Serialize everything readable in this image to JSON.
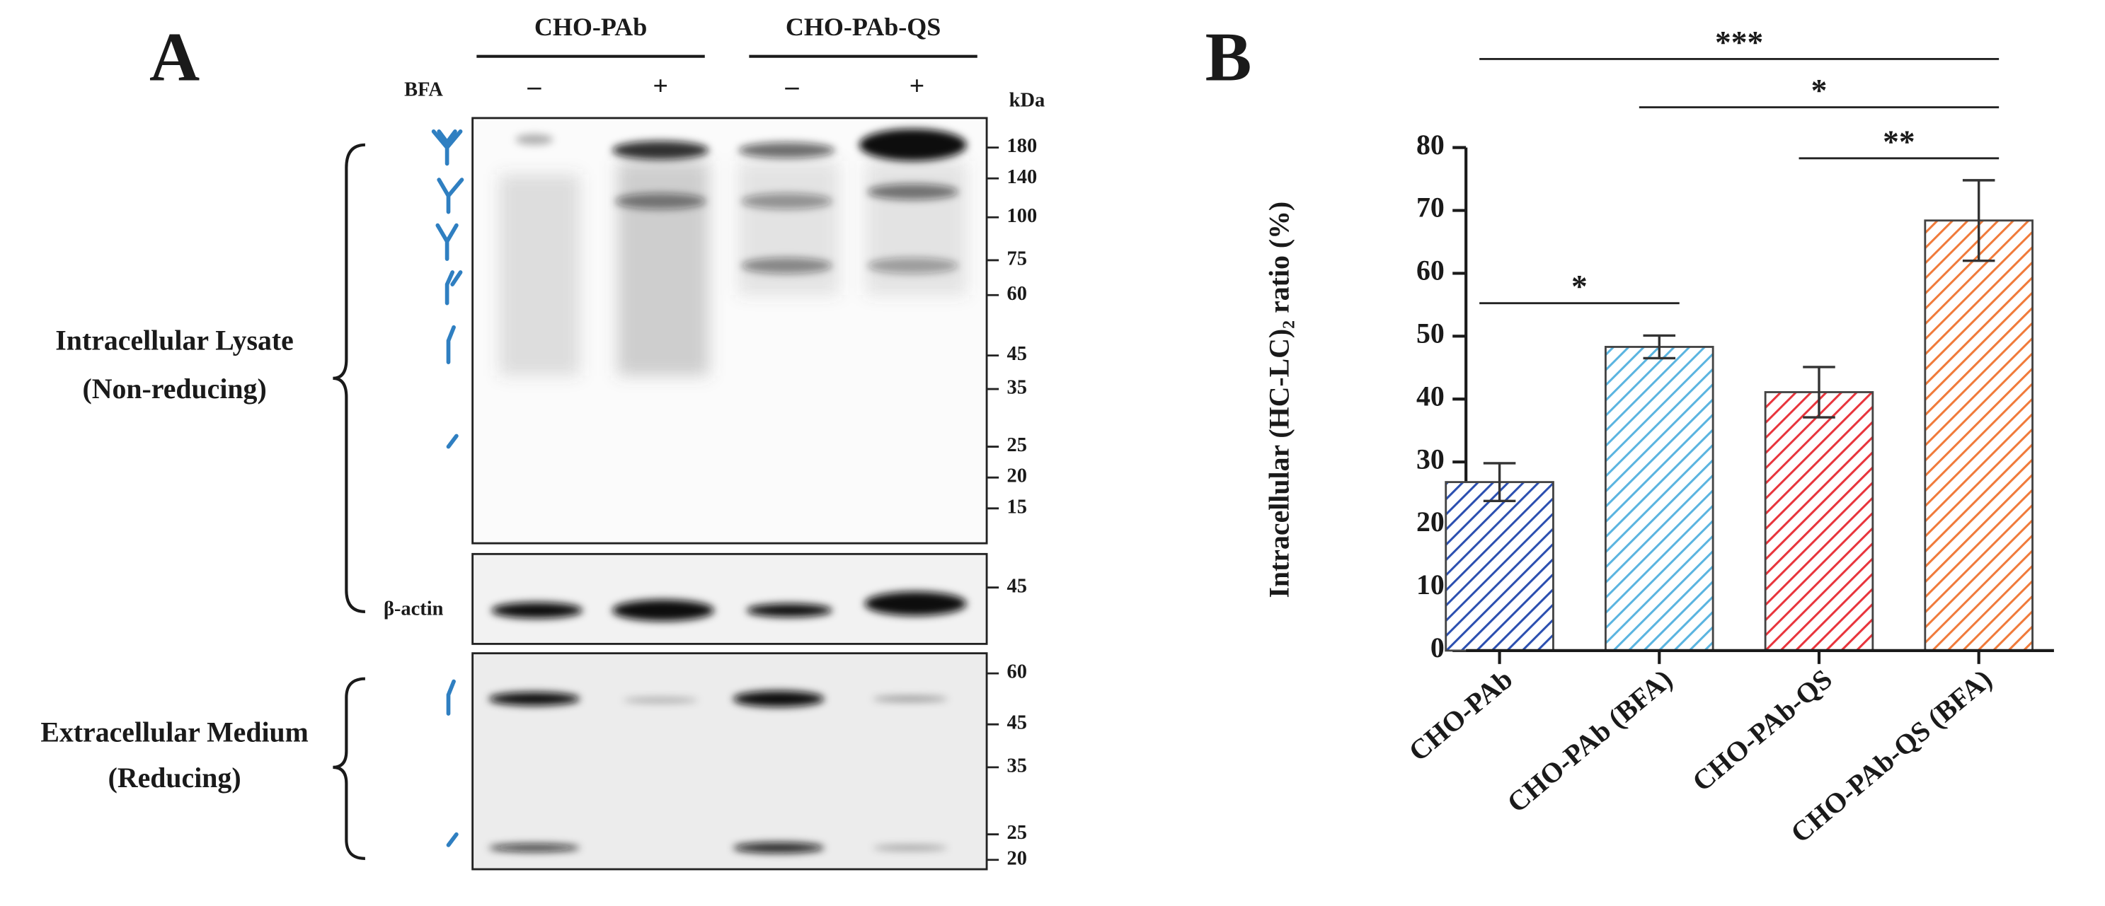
{
  "panel_a": {
    "label": "A",
    "groups": [
      "CHO-PAb",
      "CHO-PAb-QS"
    ],
    "treatment_label": "BFA",
    "treatments": [
      "–",
      "+",
      "–",
      "+"
    ],
    "unit": "kDa",
    "lysate_markers": [
      180,
      140,
      100,
      75,
      60,
      45,
      35,
      25,
      20,
      15
    ],
    "actin_label": "β-actin",
    "actin_markers": [
      45
    ],
    "medium_markers": [
      60,
      45,
      35,
      25,
      20
    ],
    "lysate_label": [
      "Intracellular Lysate",
      "(Non-reducing)"
    ],
    "medium_label": [
      "Extracellular Medium",
      "(Reducing)"
    ]
  },
  "chart_data": {
    "type": "bar",
    "panel_label": "B",
    "ylabel": "Intracellular (HC-LC)₂ ratio (%)",
    "categories": [
      "CHO-PAb",
      "CHO-PAb (BFA)",
      "CHO-PAb-QS",
      "CHO-PAb-QS (BFA)"
    ],
    "values": [
      26.8,
      48.3,
      41.1,
      68.4
    ],
    "errors": [
      3.0,
      1.8,
      4.0,
      6.4
    ],
    "colors": [
      "#2b4fb0",
      "#5ab4e0",
      "#e8343c",
      "#f07a3a"
    ],
    "hatch": true,
    "ylim": [
      0,
      80
    ],
    "yticks": [
      0,
      10,
      20,
      30,
      40,
      50,
      60,
      70,
      80
    ],
    "significance": [
      {
        "from": 0,
        "to": 1,
        "label": "*"
      },
      {
        "from": 2,
        "to": 3,
        "label": "**"
      },
      {
        "from": 1,
        "to": 3,
        "label": "*"
      },
      {
        "from": 0,
        "to": 3,
        "label": "***"
      }
    ]
  }
}
